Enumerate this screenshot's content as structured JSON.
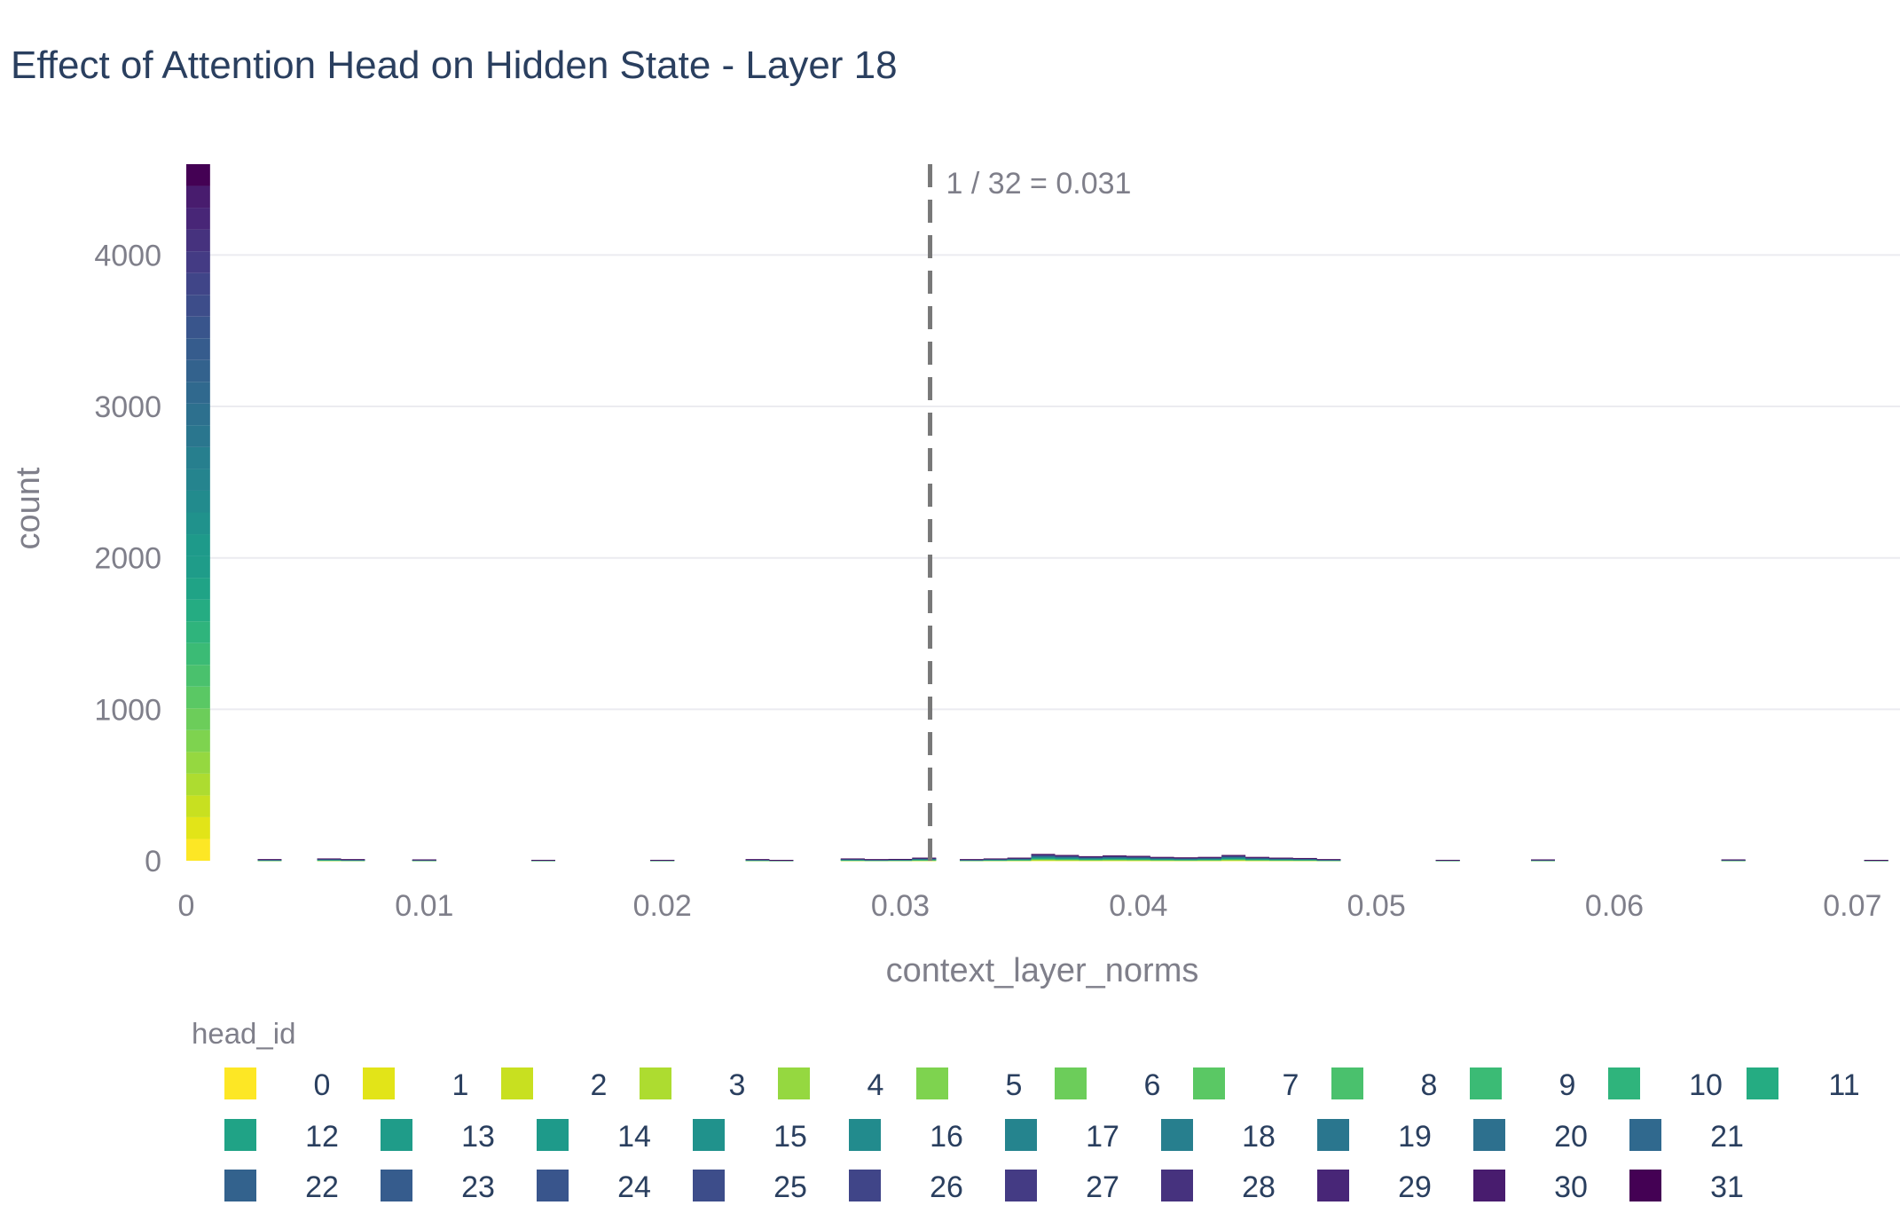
{
  "chart_data": {
    "type": "bar",
    "stacked": true,
    "title": "Effect of Attention Head on Hidden State - Layer 18",
    "xlabel": "context_layer_norms",
    "ylabel": "count",
    "xlim": [
      0,
      0.072
    ],
    "ylim": [
      0,
      4600
    ],
    "x_ticks": [
      0,
      0.01,
      0.02,
      0.03,
      0.04,
      0.05,
      0.06,
      0.07
    ],
    "x_tick_labels": [
      "0",
      "0.01",
      "0.02",
      "0.03",
      "0.04",
      "0.05",
      "0.06",
      "0.07"
    ],
    "y_ticks": [
      0,
      1000,
      2000,
      3000,
      4000
    ],
    "y_tick_labels": [
      "0",
      "1000",
      "2000",
      "3000",
      "4000"
    ],
    "grid": true,
    "bin_width": 0.001,
    "reference_line": {
      "x": 0.03125,
      "label": "1 / 32 = 0.031",
      "style": "dashed"
    },
    "legend": {
      "title": "head_id",
      "placement": "bottom"
    },
    "series": [
      {
        "name": "0",
        "color": "#fde725"
      },
      {
        "name": "1",
        "color": "#e2e418"
      },
      {
        "name": "2",
        "color": "#c8e020"
      },
      {
        "name": "3",
        "color": "#addc30"
      },
      {
        "name": "4",
        "color": "#95d840"
      },
      {
        "name": "5",
        "color": "#7ed34f"
      },
      {
        "name": "6",
        "color": "#6ccd5a"
      },
      {
        "name": "7",
        "color": "#5ac864"
      },
      {
        "name": "8",
        "color": "#4ac16d"
      },
      {
        "name": "9",
        "color": "#3bbb75"
      },
      {
        "name": "10",
        "color": "#2fb47c"
      },
      {
        "name": "11",
        "color": "#25ac82"
      },
      {
        "name": "12",
        "color": "#20a386"
      },
      {
        "name": "13",
        "color": "#1f9c89"
      },
      {
        "name": "14",
        "color": "#1e9a8a"
      },
      {
        "name": "15",
        "color": "#20928c"
      },
      {
        "name": "16",
        "color": "#228b8d"
      },
      {
        "name": "17",
        "color": "#25848e"
      },
      {
        "name": "18",
        "color": "#277f8e"
      },
      {
        "name": "19",
        "color": "#2a768e"
      },
      {
        "name": "20",
        "color": "#2d708e"
      },
      {
        "name": "21",
        "color": "#30698e"
      },
      {
        "name": "22",
        "color": "#33628d"
      },
      {
        "name": "23",
        "color": "#365c8d"
      },
      {
        "name": "24",
        "color": "#39558c"
      },
      {
        "name": "25",
        "color": "#3d4d8a"
      },
      {
        "name": "26",
        "color": "#404588"
      },
      {
        "name": "27",
        "color": "#443b84"
      },
      {
        "name": "28",
        "color": "#46327e"
      },
      {
        "name": "29",
        "color": "#482677"
      },
      {
        "name": "30",
        "color": "#481c6e"
      },
      {
        "name": "31",
        "color": "#440154"
      }
    ],
    "bars": [
      {
        "x": 0.0,
        "total": 4600
      },
      {
        "x": 0.003,
        "total": 10
      },
      {
        "x": 0.0055,
        "total": 15
      },
      {
        "x": 0.0065,
        "total": 10
      },
      {
        "x": 0.0095,
        "total": 8
      },
      {
        "x": 0.0145,
        "total": 6
      },
      {
        "x": 0.0195,
        "total": 6
      },
      {
        "x": 0.0235,
        "total": 10
      },
      {
        "x": 0.0245,
        "total": 5
      },
      {
        "x": 0.0275,
        "total": 15
      },
      {
        "x": 0.0285,
        "total": 10
      },
      {
        "x": 0.0295,
        "total": 12
      },
      {
        "x": 0.0305,
        "total": 20
      },
      {
        "x": 0.0325,
        "total": 10
      },
      {
        "x": 0.0335,
        "total": 15
      },
      {
        "x": 0.0345,
        "total": 20
      },
      {
        "x": 0.0355,
        "total": 45
      },
      {
        "x": 0.0365,
        "total": 38
      },
      {
        "x": 0.0375,
        "total": 30
      },
      {
        "x": 0.0385,
        "total": 35
      },
      {
        "x": 0.0395,
        "total": 32
      },
      {
        "x": 0.0405,
        "total": 25
      },
      {
        "x": 0.0415,
        "total": 22
      },
      {
        "x": 0.0425,
        "total": 25
      },
      {
        "x": 0.0435,
        "total": 38
      },
      {
        "x": 0.0445,
        "total": 25
      },
      {
        "x": 0.0455,
        "total": 20
      },
      {
        "x": 0.0465,
        "total": 18
      },
      {
        "x": 0.0475,
        "total": 10
      },
      {
        "x": 0.0525,
        "total": 6
      },
      {
        "x": 0.0565,
        "total": 8
      },
      {
        "x": 0.0645,
        "total": 8
      },
      {
        "x": 0.0705,
        "total": 5
      }
    ]
  }
}
